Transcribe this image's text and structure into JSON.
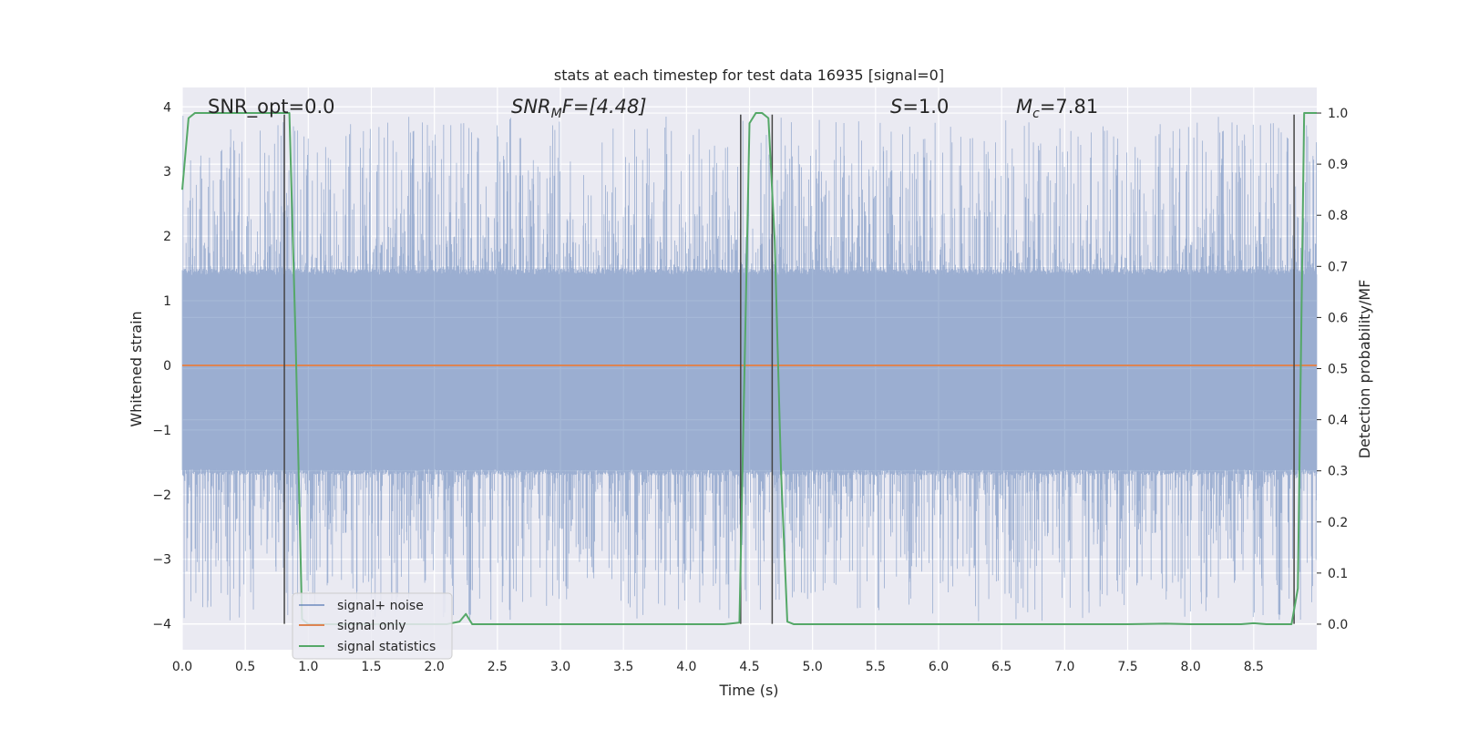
{
  "chart_data": {
    "type": "line",
    "title": "stats at each timestep for test data 16935 [signal=0]",
    "xlabel": "Time (s)",
    "ylabel": "Whitened strain",
    "y2label": "Detection probability/MF",
    "xlim": [
      0.0,
      9.0
    ],
    "ylim": [
      -4.4,
      4.3
    ],
    "y2lim": [
      -0.05,
      1.05
    ],
    "xticks": [
      "0.0",
      "0.5",
      "1.0",
      "1.5",
      "2.0",
      "2.5",
      "3.0",
      "3.5",
      "4.0",
      "4.5",
      "5.0",
      "5.5",
      "6.0",
      "6.5",
      "7.0",
      "7.5",
      "8.0",
      "8.5"
    ],
    "xtick_values": [
      0.0,
      0.5,
      1.0,
      1.5,
      2.0,
      2.5,
      3.0,
      3.5,
      4.0,
      4.5,
      5.0,
      5.5,
      6.0,
      6.5,
      7.0,
      7.5,
      8.0,
      8.5
    ],
    "yticks": [
      "−4",
      "−3",
      "−2",
      "−1",
      "0",
      "1",
      "2",
      "3",
      "4"
    ],
    "ytick_values": [
      -4,
      -3,
      -2,
      -1,
      0,
      1,
      2,
      3,
      4
    ],
    "y2ticks": [
      "0.0",
      "0.1",
      "0.2",
      "0.3",
      "0.4",
      "0.5",
      "0.6",
      "0.7",
      "0.8",
      "0.9",
      "1.0"
    ],
    "y2tick_values": [
      0.0,
      0.1,
      0.2,
      0.3,
      0.4,
      0.5,
      0.6,
      0.7,
      0.8,
      0.9,
      1.0
    ],
    "grid": true,
    "legend_position": "lower-left",
    "annotations": {
      "snr_opt": "SNR_opt=0.0",
      "snr_mf_main": "SNR",
      "snr_mf_sub": "M",
      "snr_mf_rest": "F=[4.48]",
      "s_main": "S",
      "s_rest": "=1.0",
      "mc_main": "M",
      "mc_sub": "c",
      "mc_rest": "=7.81"
    },
    "series": [
      {
        "name": "signal+ noise",
        "color": "#4c72b0",
        "noise_band": {
          "typical_low": -1.7,
          "typical_high": 1.5,
          "max": 3.9,
          "min": -4.0
        }
      },
      {
        "name": "signal only",
        "color": "#dd8452",
        "x": [
          0.0,
          9.0
        ],
        "y": [
          0.0,
          0.0
        ]
      },
      {
        "name": "signal statistics",
        "color": "#55a868",
        "axis": "right",
        "x": [
          0.0,
          0.05,
          0.1,
          0.15,
          0.2,
          0.3,
          0.4,
          0.5,
          0.6,
          0.7,
          0.8,
          0.85,
          0.9,
          0.95,
          1.0,
          1.1,
          1.5,
          2.0,
          2.1,
          2.2,
          2.25,
          2.3,
          2.4,
          3.0,
          3.5,
          4.0,
          4.3,
          4.42,
          4.5,
          4.55,
          4.6,
          4.65,
          4.7,
          4.75,
          4.8,
          4.85,
          5.0,
          6.0,
          7.0,
          7.5,
          7.8,
          8.0,
          8.4,
          8.5,
          8.6,
          8.8,
          8.85,
          8.9,
          9.0
        ],
        "y": [
          0.85,
          0.99,
          1.0,
          1.0,
          1.0,
          1.0,
          1.0,
          1.0,
          1.0,
          1.0,
          1.0,
          1.0,
          0.55,
          0.01,
          0.0,
          0.0,
          0.0,
          0.0,
          0.0,
          0.005,
          0.02,
          0.0,
          0.0,
          0.0,
          0.0,
          0.0,
          0.0,
          0.003,
          0.98,
          1.0,
          1.0,
          0.99,
          0.75,
          0.3,
          0.005,
          0.0,
          0.0,
          0.0,
          0.0,
          0.0,
          0.001,
          0.0,
          0.0,
          0.002,
          0.0,
          0.0,
          0.07,
          1.0,
          1.0
        ]
      }
    ],
    "vertical_markers": [
      0.81,
      4.43,
      4.68,
      8.82
    ]
  }
}
